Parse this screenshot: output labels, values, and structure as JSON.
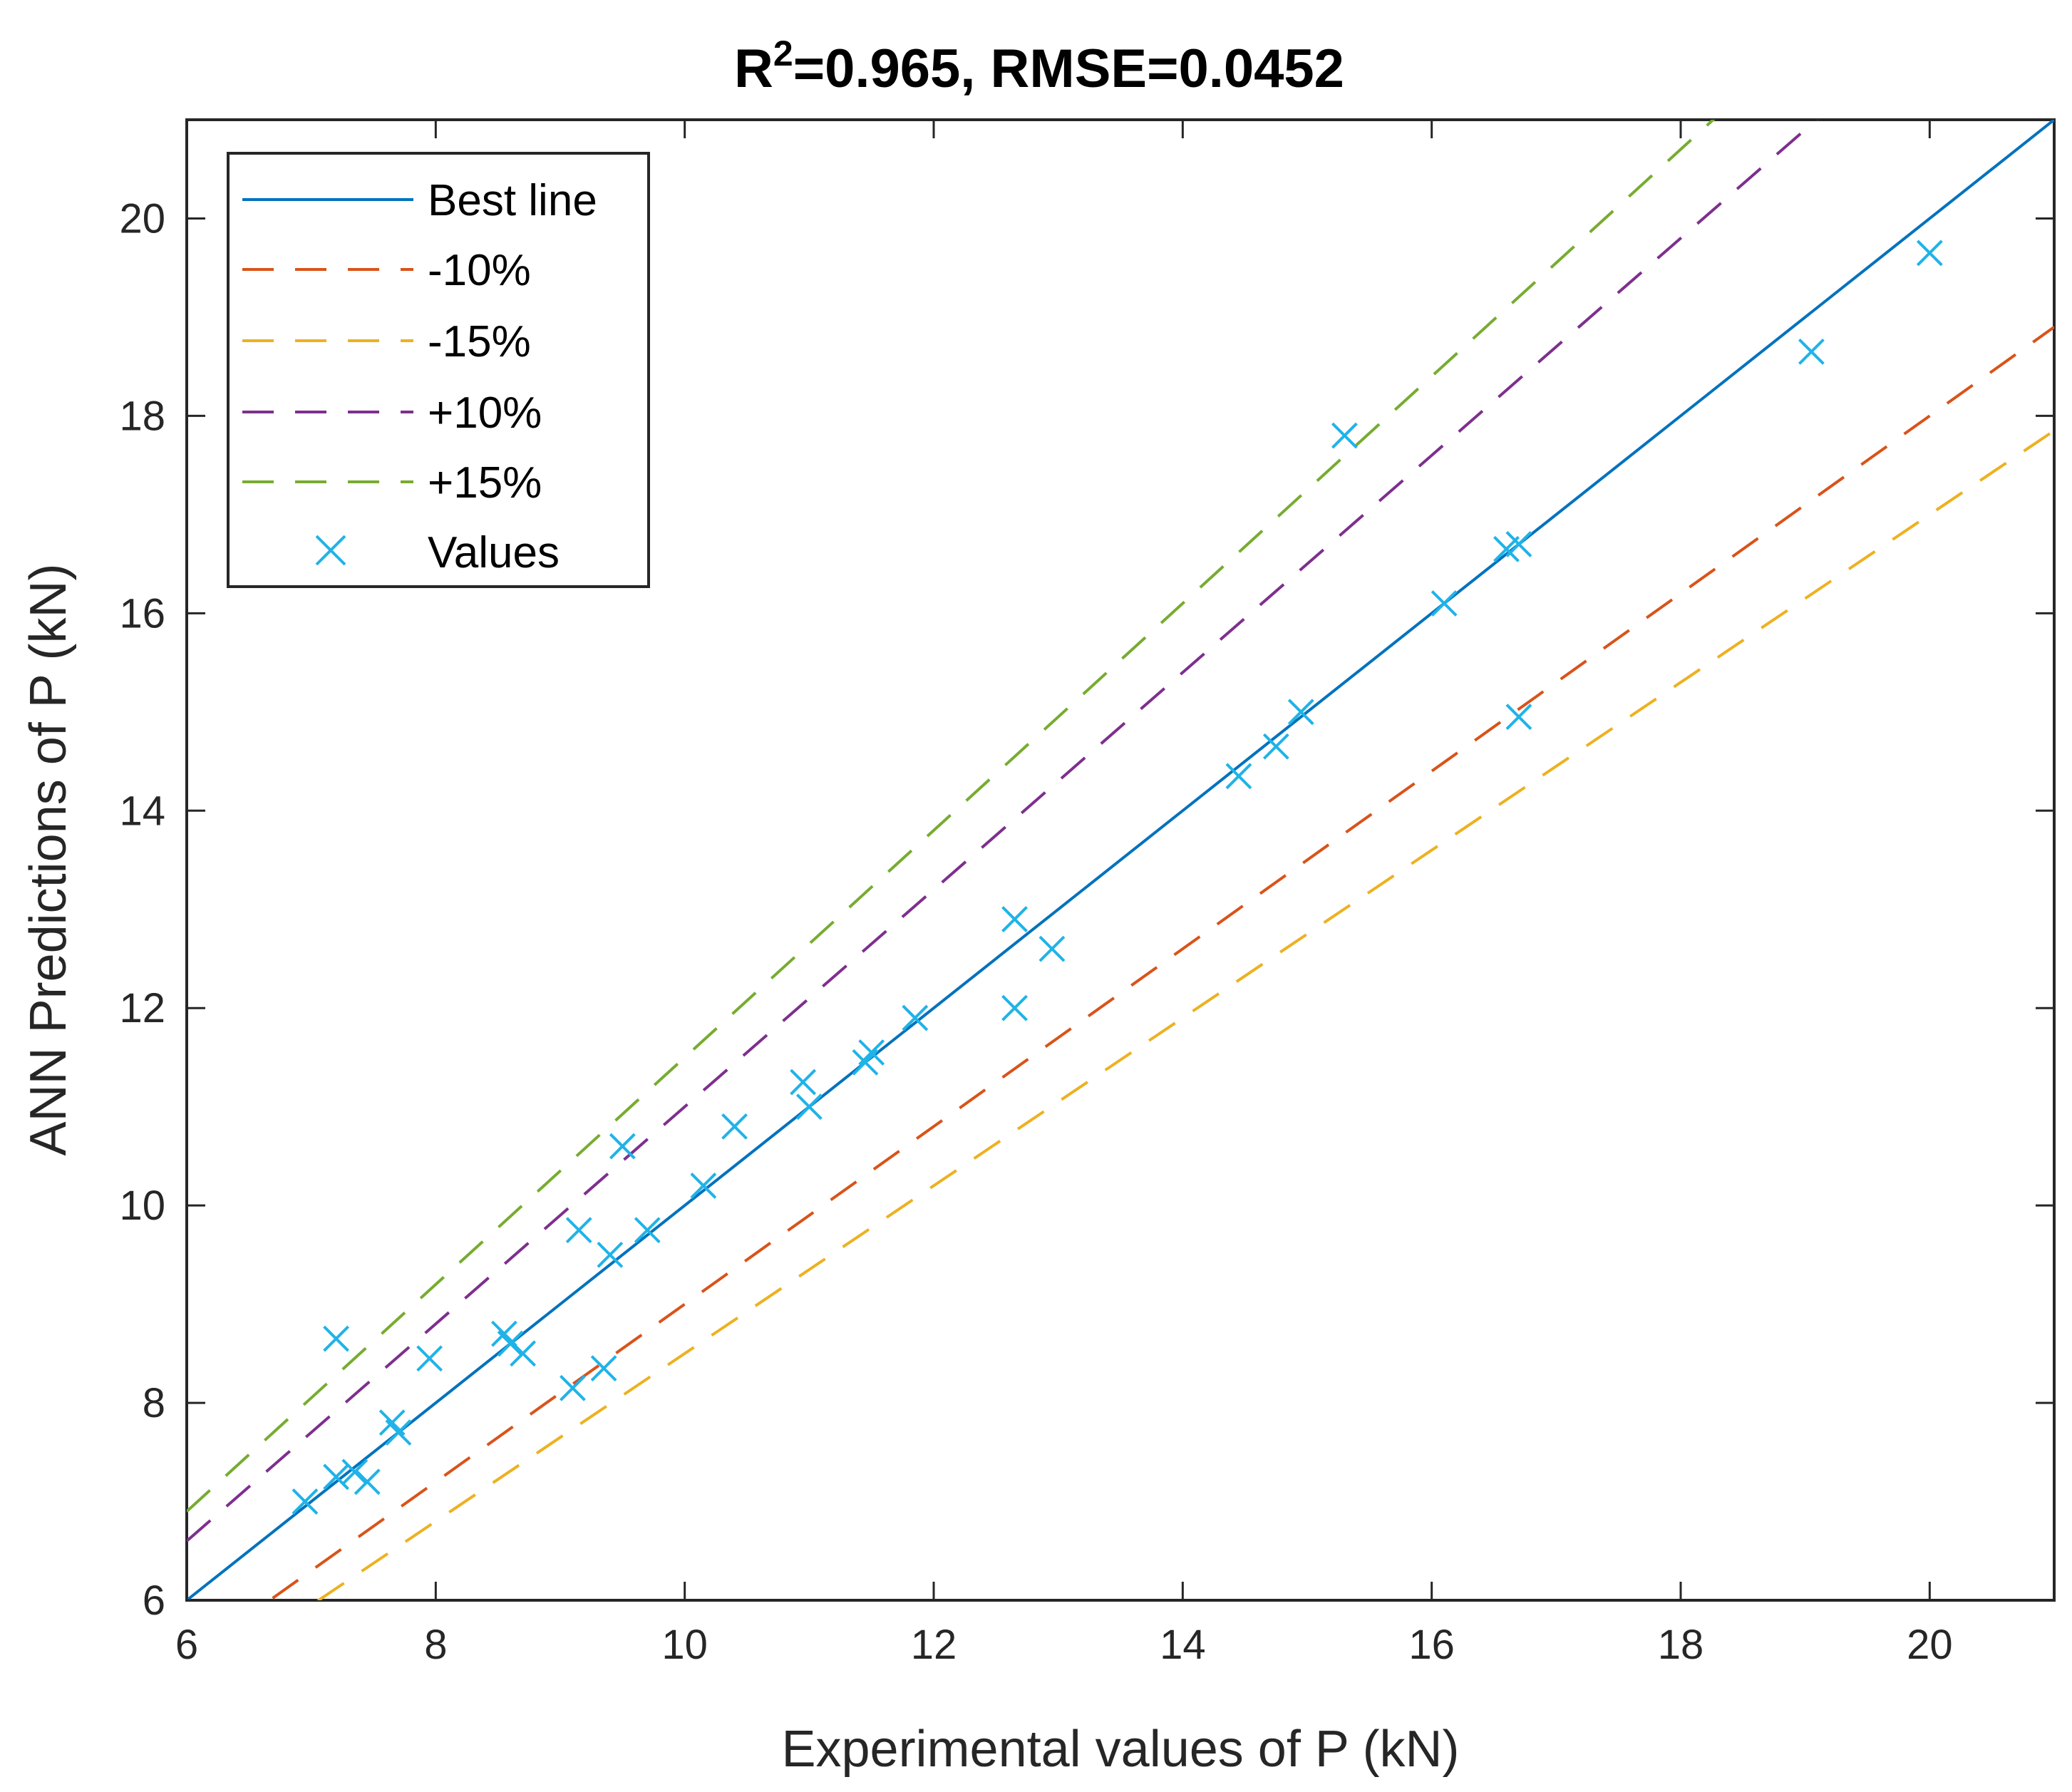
{
  "chart_data": {
    "type": "scatter",
    "title_main": "R",
    "title_sup": "2",
    "title_rest": "=0.965, RMSE=0.0452",
    "xlabel": "Experimental values of P (kN)",
    "ylabel": "ANN Predictions of P (kN)",
    "xlim": [
      6,
      21
    ],
    "ylim": [
      6,
      21
    ],
    "xticks": [
      6,
      8,
      10,
      12,
      14,
      16,
      18,
      20
    ],
    "yticks": [
      6,
      8,
      10,
      12,
      14,
      16,
      18,
      20
    ],
    "xtick_labels": [
      "6",
      "8",
      "10",
      "12",
      "14",
      "16",
      "18",
      "20"
    ],
    "ytick_labels": [
      "6",
      "8",
      "10",
      "12",
      "14",
      "16",
      "18",
      "20"
    ],
    "legend_position": "top-left",
    "lines": [
      {
        "key": "best",
        "name": "Best line",
        "factor": 1.0,
        "color": "#0072BD",
        "style": "solid"
      },
      {
        "key": "minus10",
        "name": "-10%",
        "factor": 0.9,
        "color": "#D95319",
        "style": "dashed"
      },
      {
        "key": "minus15",
        "name": "-15%",
        "factor": 0.85,
        "color": "#EDB120",
        "style": "dashed"
      },
      {
        "key": "plus10",
        "name": "+10%",
        "factor": 1.1,
        "color": "#7E2F8E",
        "style": "dashed"
      },
      {
        "key": "plus15",
        "name": "+15%",
        "factor": 1.15,
        "color": "#77AC30",
        "style": "dashed"
      }
    ],
    "scatter": {
      "name": "Values",
      "color": "#1FB3E8",
      "marker": "x",
      "points": [
        [
          6.95,
          7.0
        ],
        [
          7.2,
          7.25
        ],
        [
          7.35,
          7.3
        ],
        [
          7.45,
          7.2
        ],
        [
          7.2,
          8.65
        ],
        [
          7.65,
          7.8
        ],
        [
          7.7,
          7.7
        ],
        [
          7.95,
          8.45
        ],
        [
          8.55,
          8.7
        ],
        [
          8.6,
          8.6
        ],
        [
          8.7,
          8.5
        ],
        [
          9.1,
          8.15
        ],
        [
          9.35,
          8.35
        ],
        [
          9.15,
          9.75
        ],
        [
          9.4,
          9.5
        ],
        [
          9.5,
          10.6
        ],
        [
          9.7,
          9.75
        ],
        [
          10.15,
          10.2
        ],
        [
          10.4,
          10.8
        ],
        [
          10.95,
          11.25
        ],
        [
          11.0,
          11.0
        ],
        [
          11.45,
          11.45
        ],
        [
          11.5,
          11.55
        ],
        [
          11.85,
          11.9
        ],
        [
          12.65,
          12.9
        ],
        [
          12.65,
          12.0
        ],
        [
          12.95,
          12.6
        ],
        [
          14.45,
          14.35
        ],
        [
          14.75,
          14.65
        ],
        [
          14.95,
          15.0
        ],
        [
          15.3,
          17.8
        ],
        [
          16.1,
          16.1
        ],
        [
          16.6,
          16.65
        ],
        [
          16.7,
          16.7
        ],
        [
          16.7,
          14.95
        ],
        [
          19.05,
          18.65
        ],
        [
          20.0,
          19.65
        ]
      ]
    }
  }
}
